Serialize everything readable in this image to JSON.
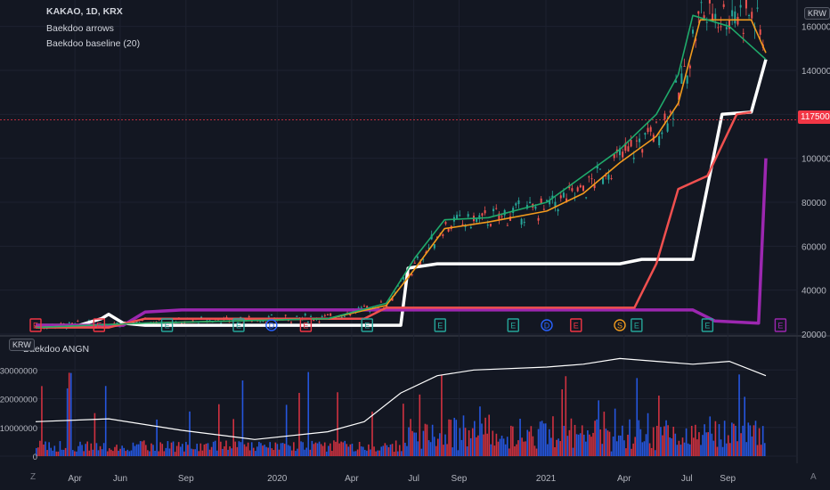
{
  "legend": {
    "title": "KAKAO, 1D, KRX",
    "indicator1": "Baekdoo arrows",
    "indicator2": "Baekdoo baseline (20)",
    "indicator3": "Baekdoo ANGN"
  },
  "units": {
    "main": "KRW",
    "lower": "KRW"
  },
  "last_price": "117500",
  "corner_left": "Z",
  "corner_right": "A",
  "colors": {
    "bg": "#131722",
    "grid": "#1e2230",
    "text": "#b2b5be",
    "up": "#26a69a",
    "down": "#ef5350",
    "green_line": "#1faa6b",
    "orange_line": "#f29b1d",
    "red_line": "#f0504f",
    "white_line": "#ffffff",
    "purple_line": "#9c27b0",
    "vol_up": "#2962ff",
    "vol_down": "#f23645"
  },
  "chart_data": [
    {
      "type": "line",
      "title": "KAKAO, 1D, KRX",
      "ylim": [
        20000,
        170000
      ],
      "y_ticks": [
        20000,
        40000,
        60000,
        80000,
        100000,
        120000,
        140000,
        160000
      ],
      "x_ticks": [
        "Apr",
        "Jun",
        "Sep",
        "2020",
        "Apr",
        "Jul",
        "Sep",
        "2021",
        "Apr",
        "Jul",
        "Sep"
      ],
      "last_price": 117500,
      "series": [
        {
          "name": "Baekdoo baseline",
          "color": "#ffffff",
          "points": [
            [
              0,
              24000
            ],
            [
              0.06,
              24000
            ],
            [
              0.09,
              27000
            ],
            [
              0.1,
              29000
            ],
            [
              0.12,
              25000
            ],
            [
              0.15,
              24000
            ],
            [
              0.4,
              24000
            ],
            [
              0.5,
              24000
            ],
            [
              0.51,
              50000
            ],
            [
              0.55,
              52000
            ],
            [
              0.8,
              52000
            ],
            [
              0.83,
              54000
            ],
            [
              0.9,
              54000
            ],
            [
              0.94,
              120000
            ],
            [
              0.98,
              121000
            ],
            [
              1.0,
              145000
            ]
          ]
        },
        {
          "name": "Baekdoo purple",
          "color": "#9c27b0",
          "points": [
            [
              0,
              24000
            ],
            [
              0.12,
              24000
            ],
            [
              0.15,
              30000
            ],
            [
              0.2,
              31000
            ],
            [
              0.9,
              31000
            ],
            [
              0.93,
              26000
            ],
            [
              0.99,
              25000
            ],
            [
              1.0,
              100000
            ]
          ]
        },
        {
          "name": "Baekdoo red",
          "color": "#f0504f",
          "points": [
            [
              0,
              23000
            ],
            [
              0.1,
              23000
            ],
            [
              0.15,
              27000
            ],
            [
              0.45,
              27000
            ],
            [
              0.48,
              32000
            ],
            [
              0.82,
              32000
            ],
            [
              0.85,
              52000
            ],
            [
              0.88,
              86000
            ],
            [
              0.92,
              92000
            ],
            [
              0.96,
              120000
            ],
            [
              0.98,
              121000
            ]
          ]
        },
        {
          "name": "Baekdoo orange",
          "color": "#f29b1d",
          "points": [
            [
              0,
              23000
            ],
            [
              0.15,
              25000
            ],
            [
              0.4,
              27000
            ],
            [
              0.48,
              33000
            ],
            [
              0.52,
              50000
            ],
            [
              0.56,
              68000
            ],
            [
              0.62,
              71000
            ],
            [
              0.7,
              76000
            ],
            [
              0.75,
              84000
            ],
            [
              0.8,
              98000
            ],
            [
              0.85,
              110000
            ],
            [
              0.88,
              125000
            ],
            [
              0.91,
              163000
            ],
            [
              0.98,
              163000
            ],
            [
              1.0,
              148000
            ]
          ]
        },
        {
          "name": "Baekdoo green",
          "color": "#1faa6b",
          "points": [
            [
              0,
              23000
            ],
            [
              0.15,
              25000
            ],
            [
              0.4,
              27000
            ],
            [
              0.48,
              34000
            ],
            [
              0.52,
              55000
            ],
            [
              0.56,
              72000
            ],
            [
              0.62,
              73000
            ],
            [
              0.7,
              80000
            ],
            [
              0.75,
              92000
            ],
            [
              0.8,
              104000
            ],
            [
              0.85,
              120000
            ],
            [
              0.88,
              138000
            ],
            [
              0.9,
              165000
            ],
            [
              0.95,
              160000
            ],
            [
              1.0,
              145000
            ]
          ]
        }
      ],
      "markers": [
        {
          "label": "E",
          "color": "#f23645",
          "x": 0.0
        },
        {
          "label": "E",
          "color": "#f23645",
          "x": 0.087
        },
        {
          "label": "E",
          "color": "#26a69a",
          "x": 0.18
        },
        {
          "label": "E",
          "color": "#26a69a",
          "x": 0.278
        },
        {
          "label": "D",
          "color": "#2962ff",
          "x": 0.323
        },
        {
          "label": "E",
          "color": "#f23645",
          "x": 0.37
        },
        {
          "label": "E",
          "color": "#26a69a",
          "x": 0.454
        },
        {
          "label": "E",
          "color": "#26a69a",
          "x": 0.554
        },
        {
          "label": "E",
          "color": "#26a69a",
          "x": 0.654
        },
        {
          "label": "D",
          "color": "#2962ff",
          "x": 0.7
        },
        {
          "label": "E",
          "color": "#f23645",
          "x": 0.74
        },
        {
          "label": "S",
          "color": "#f29b1d",
          "x": 0.8
        },
        {
          "label": "E",
          "color": "#26a69a",
          "x": 0.823
        },
        {
          "label": "E",
          "color": "#26a69a",
          "x": 0.92
        },
        {
          "label": "E",
          "color": "#9c27b0",
          "x": 1.03
        }
      ]
    },
    {
      "type": "bar",
      "title": "Baekdoo ANGN",
      "ylim": [
        0,
        40000000
      ],
      "y_ticks": [
        0,
        10000000,
        20000000,
        30000000
      ],
      "line_series": {
        "name": "Baekdoo ANGN",
        "color": "#ffffff",
        "points": [
          [
            0,
            12000000
          ],
          [
            0.1,
            13000000
          ],
          [
            0.2,
            9000000
          ],
          [
            0.3,
            5800000
          ],
          [
            0.4,
            8500000
          ],
          [
            0.45,
            12000000
          ],
          [
            0.5,
            22000000
          ],
          [
            0.55,
            28000000
          ],
          [
            0.6,
            30000000
          ],
          [
            0.7,
            31000000
          ],
          [
            0.75,
            32000000
          ],
          [
            0.8,
            34000000
          ],
          [
            0.9,
            32000000
          ],
          [
            0.95,
            33000000
          ],
          [
            1.0,
            28000000
          ]
        ]
      }
    }
  ]
}
